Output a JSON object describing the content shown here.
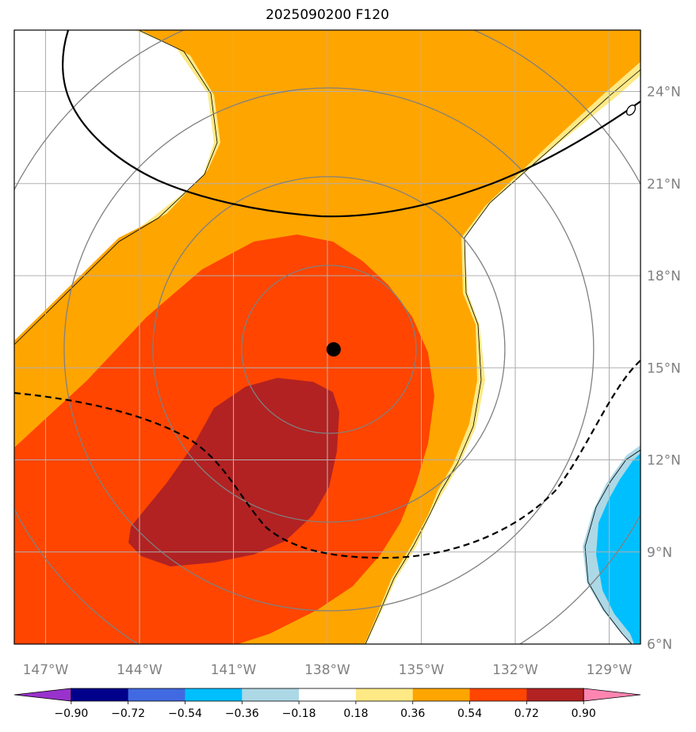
{
  "title": "2025090200 F120",
  "map": {
    "lon_range": [
      -148,
      -128
    ],
    "lat_range": [
      6,
      26
    ],
    "lon_ticks": [
      {
        "value": -147,
        "label": "147°W"
      },
      {
        "value": -144,
        "label": "144°W"
      },
      {
        "value": -141,
        "label": "141°W"
      },
      {
        "value": -138,
        "label": "138°W"
      },
      {
        "value": -135,
        "label": "135°W"
      },
      {
        "value": -132,
        "label": "132°W"
      },
      {
        "value": -129,
        "label": "129°W"
      }
    ],
    "lat_ticks": [
      {
        "value": 6,
        "label": "6°N"
      },
      {
        "value": 9,
        "label": "9°N"
      },
      {
        "value": 12,
        "label": "12°N"
      },
      {
        "value": 15,
        "label": "15°N"
      },
      {
        "value": 18,
        "label": "18°N"
      },
      {
        "value": 21,
        "label": "21°N"
      },
      {
        "value": 24,
        "label": "24°N"
      }
    ],
    "storm_center": {
      "lon": -137.8,
      "lat": 15.6
    },
    "range_ring_labels": [],
    "contour_label": "0",
    "colors": {
      "grid": "#b0b0b0",
      "rings": "#808080",
      "frame": "#000000"
    }
  },
  "colorbar": {
    "ticks": [
      "−0.90",
      "−0.72",
      "−0.54",
      "−0.36",
      "−0.18",
      "0.18",
      "0.36",
      "0.54",
      "0.72",
      "0.90"
    ],
    "colors": [
      "#9932cc",
      "#00008b",
      "#4169e1",
      "#00bfff",
      "#add8e6",
      "#ffffff",
      "#ffe985",
      "#ffa500",
      "#ff4500",
      "#b22222",
      "#ff85b1"
    ]
  }
}
